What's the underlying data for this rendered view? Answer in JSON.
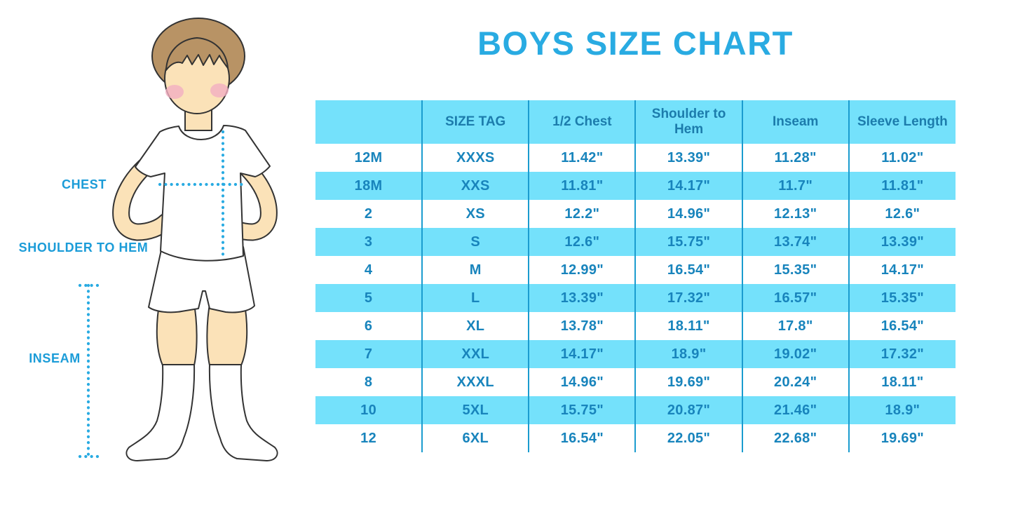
{
  "title": "BOYS SIZE CHART",
  "figure": {
    "chest_label": "CHEST",
    "shoulder_to_hem_label": "SHOULDER TO HEM",
    "inseam_label": "INSEAM"
  },
  "table": {
    "headers": [
      "",
      "SIZE TAG",
      "1/2 Chest",
      "Shoulder to Hem",
      "Inseam",
      "Sleeve Length"
    ]
  },
  "chart_data": {
    "type": "table",
    "title": "BOYS SIZE CHART",
    "columns": [
      "",
      "SIZE TAG",
      "1/2 Chest",
      "Shoulder to Hem",
      "Inseam",
      "Sleeve Length"
    ],
    "rows": [
      [
        "12M",
        "XXXS",
        "11.42\"",
        "13.39\"",
        "11.28\"",
        "11.02\""
      ],
      [
        "18M",
        "XXS",
        "11.81\"",
        "14.17\"",
        "11.7\"",
        "11.81\""
      ],
      [
        "2",
        "XS",
        "12.2\"",
        "14.96\"",
        "12.13\"",
        "12.6\""
      ],
      [
        "3",
        "S",
        "12.6\"",
        "15.75\"",
        "13.74\"",
        "13.39\""
      ],
      [
        "4",
        "M",
        "12.99\"",
        "16.54\"",
        "15.35\"",
        "14.17\""
      ],
      [
        "5",
        "L",
        "13.39\"",
        "17.32\"",
        "16.57\"",
        "15.35\""
      ],
      [
        "6",
        "XL",
        "13.78\"",
        "18.11\"",
        "17.8\"",
        "16.54\""
      ],
      [
        "7",
        "XXL",
        "14.17\"",
        "18.9\"",
        "19.02\"",
        "17.32\""
      ],
      [
        "8",
        "XXXL",
        "14.96\"",
        "19.69\"",
        "20.24\"",
        "18.11\""
      ],
      [
        "10",
        "5XL",
        "15.75\"",
        "20.87\"",
        "21.46\"",
        "18.9\""
      ],
      [
        "12",
        "6XL",
        "16.54\"",
        "22.05\"",
        "22.68\"",
        "19.69\""
      ]
    ]
  },
  "colors": {
    "title_color": "#29ABE2",
    "stripe": "#74E1FB",
    "cell_text": "#1884BC",
    "header_text": "#1C7CAC",
    "divider": "#1B9CCF",
    "dot": "#29ABE2",
    "label": "#1B9CD8"
  }
}
